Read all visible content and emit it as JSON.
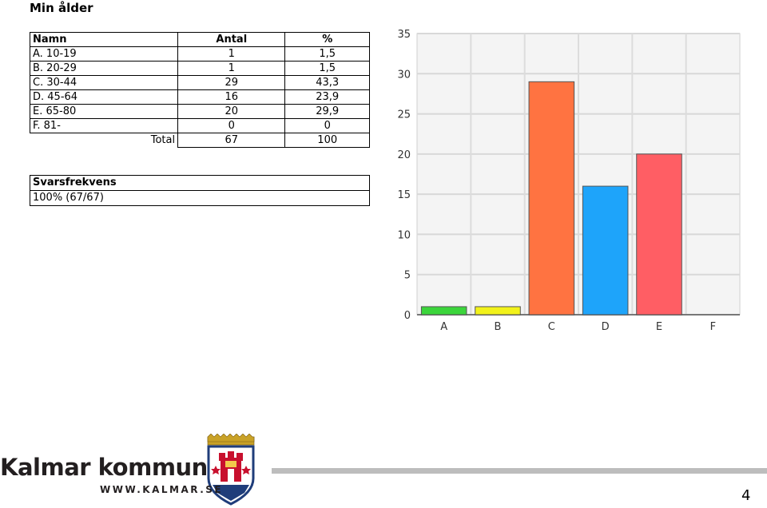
{
  "title": "Min ålder",
  "table": {
    "headers": [
      "Namn",
      "Antal",
      "%"
    ],
    "rows": [
      {
        "name": "A. 10-19",
        "count": "1",
        "pct": "1,5"
      },
      {
        "name": "B. 20-29",
        "count": "1",
        "pct": "1,5"
      },
      {
        "name": "C. 30-44",
        "count": "29",
        "pct": "43,3"
      },
      {
        "name": "D. 45-64",
        "count": "16",
        "pct": "23,9"
      },
      {
        "name": "E. 65-80",
        "count": "20",
        "pct": "29,9"
      },
      {
        "name": "F. 81-",
        "count": "0",
        "pct": "0"
      }
    ],
    "total": {
      "label": "Total",
      "count": "67",
      "pct": "100"
    }
  },
  "response": {
    "header": "Svarsfrekvens",
    "value": "100% (67/67)"
  },
  "chart_data": {
    "type": "bar",
    "categories": [
      "A",
      "B",
      "C",
      "D",
      "E",
      "F"
    ],
    "values": [
      1,
      1,
      29,
      16,
      20,
      0
    ],
    "colors": [
      "#3bd53b",
      "#f2f21a",
      "#ff7341",
      "#1ea4fa",
      "#ff5e64",
      "#cccccc"
    ],
    "ylim": [
      0,
      35
    ],
    "yticks": [
      0,
      5,
      10,
      15,
      20,
      25,
      30,
      35
    ],
    "grid": true
  },
  "footer": {
    "brand": "Kalmar kommun",
    "url": "WWW.KALMAR.SE",
    "page": "4",
    "accent_color": "#c8102e"
  }
}
